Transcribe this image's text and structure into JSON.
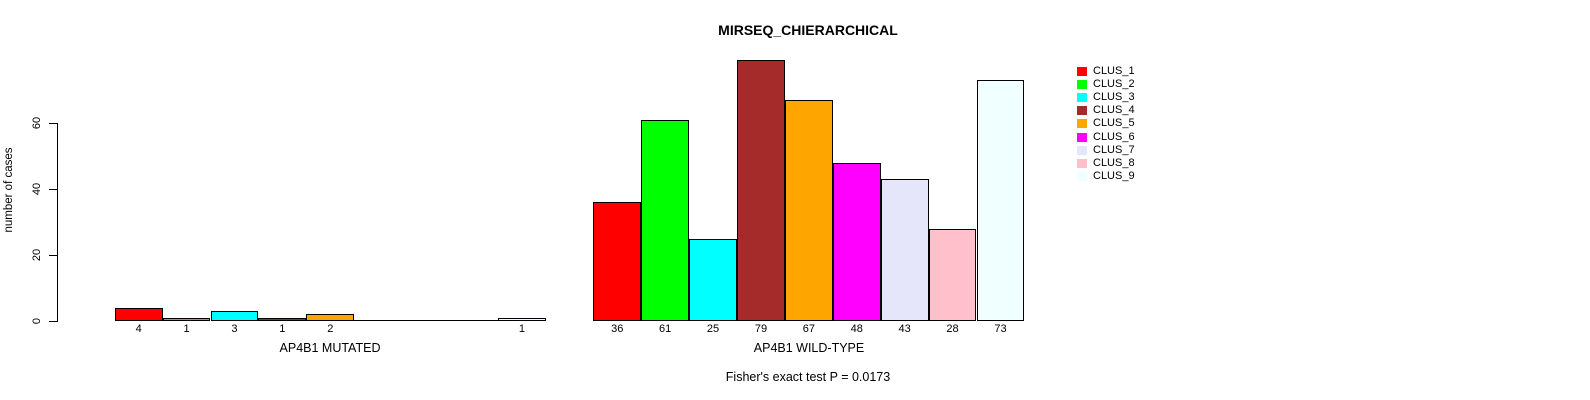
{
  "title": "MIRSEQ_CHIERARCHICAL",
  "annotation": "Fisher's exact test P = 0.0173",
  "chart_data": {
    "type": "bar",
    "title": "MIRSEQ_CHIERARCHICAL",
    "ylabel": "number of cases",
    "yticks": [
      0,
      20,
      40,
      60
    ],
    "ylim": [
      0,
      79
    ],
    "grid": false,
    "legend_position": "top-right",
    "legend": [
      {
        "label": "CLUS_1",
        "color": "#FF0000"
      },
      {
        "label": "CLUS_2",
        "color": "#00FF00"
      },
      {
        "label": "CLUS_3",
        "color": "#00FFFF"
      },
      {
        "label": "CLUS_4",
        "color": "#A52A2A"
      },
      {
        "label": "CLUS_5",
        "color": "#FFA500"
      },
      {
        "label": "CLUS_6",
        "color": "#FF00FF"
      },
      {
        "label": "CLUS_7",
        "color": "#E6E6FA"
      },
      {
        "label": "CLUS_8",
        "color": "#FFC0CB"
      },
      {
        "label": "CLUS_9",
        "color": "#F0FFFF"
      }
    ],
    "groups": [
      {
        "label": "AP4B1 MUTATED",
        "values": [
          4,
          1,
          3,
          1,
          2,
          0,
          0,
          0,
          1
        ]
      },
      {
        "label": "AP4B1 WILD-TYPE",
        "values": [
          36,
          61,
          25,
          79,
          67,
          48,
          43,
          28,
          73
        ]
      }
    ],
    "annotation": "Fisher's exact test P = 0.0173"
  }
}
